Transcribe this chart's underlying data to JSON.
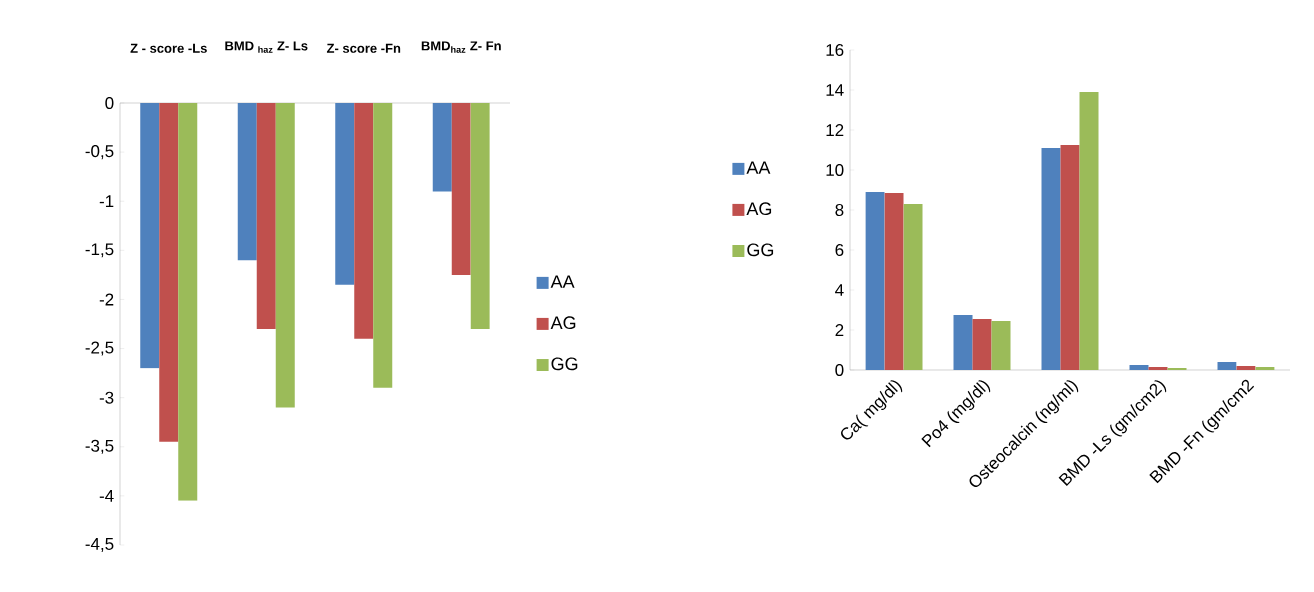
{
  "chart_data": [
    {
      "type": "bar",
      "categories": [
        "Z - score -Ls",
        "BMD $_{haz}$ Z- Ls",
        "Z- score -Fn",
        "BMD$_{haz}$ Z- Fn"
      ],
      "series": [
        {
          "name": "AA",
          "color": "#4f81bd",
          "values": [
            -2.7,
            -1.6,
            -1.85,
            -0.9
          ]
        },
        {
          "name": "AG",
          "color": "#c0504d",
          "values": [
            -3.45,
            -2.3,
            -2.4,
            -1.75
          ]
        },
        {
          "name": "GG",
          "color": "#9bbb59",
          "values": [
            -4.05,
            -3.1,
            -2.9,
            -2.3
          ]
        }
      ],
      "ylim": [
        -4.5,
        0
      ],
      "yticks": [
        0,
        {
          "value": -0.5,
          "label": "-0,5"
        },
        -1,
        {
          "value": -1.5,
          "label": "-1,5"
        },
        -2,
        {
          "value": -2.5,
          "label": "-2,5"
        },
        -3,
        {
          "value": -3.5,
          "label": "-3,5"
        },
        -4,
        {
          "value": -4.5,
          "label": "-4,5"
        }
      ],
      "legend": "right"
    },
    {
      "type": "bar",
      "categories": [
        "Ca( mg/dl)",
        "Po4 (mg/dl)",
        "Osteocalcin (ng/ml)",
        "BMD  -Ls (gm/cm2)",
        "BMD  -Fn (gm/cm2"
      ],
      "series": [
        {
          "name": "AA",
          "color": "#4f81bd",
          "values": [
            8.9,
            2.75,
            11.1,
            0.25,
            0.4
          ]
        },
        {
          "name": "AG",
          "color": "#c0504d",
          "values": [
            8.85,
            2.55,
            11.25,
            0.15,
            0.2
          ]
        },
        {
          "name": "GG",
          "color": "#9bbb59",
          "values": [
            8.3,
            2.45,
            13.9,
            0.1,
            0.15
          ]
        }
      ],
      "ylim": [
        0,
        16
      ],
      "yticks": [
        0,
        2,
        4,
        6,
        8,
        10,
        12,
        14,
        16
      ],
      "legend": "left"
    }
  ]
}
